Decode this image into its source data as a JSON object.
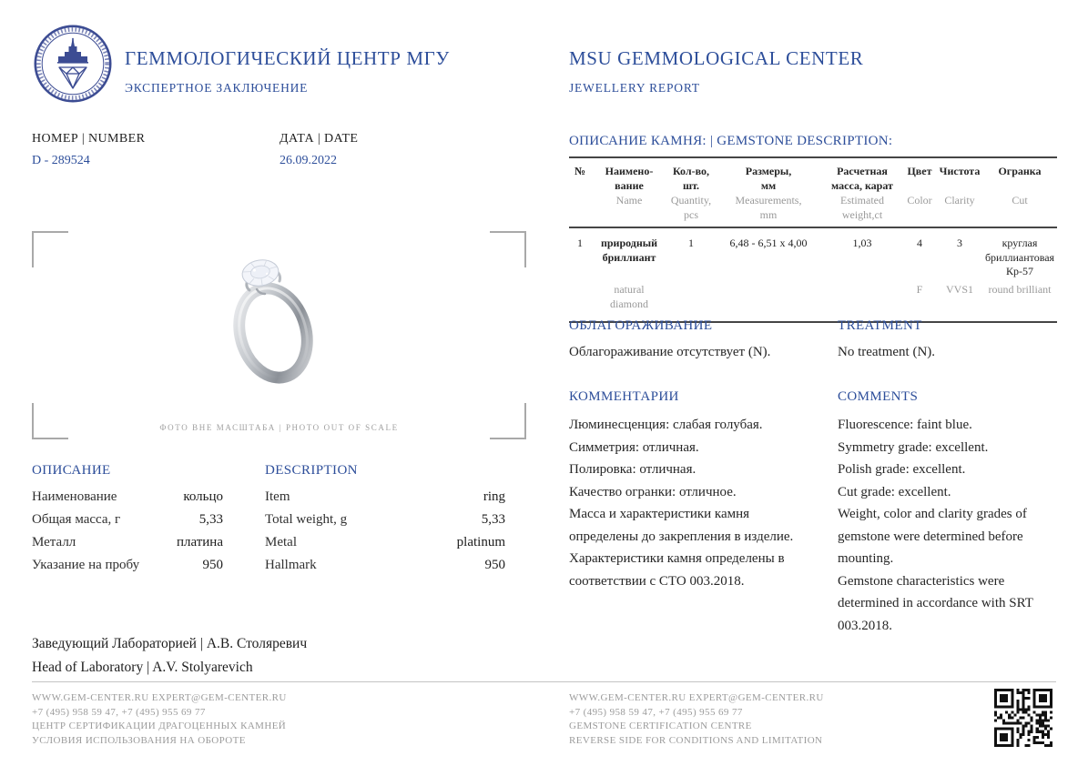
{
  "colors": {
    "accent": "#2d4e9a",
    "muted": "#9a9a9a"
  },
  "header": {
    "org_ru": "ГЕММОЛОГИЧЕСКИЙ ЦЕНТР МГУ",
    "report_ru": "ЭКСПЕРТНОЕ ЗАКЛЮЧЕНИЕ",
    "org_en": "MSU GEMMOLOGICAL CENTER",
    "report_en": "JEWELLERY REPORT",
    "logo": "msu-gem-center-seal"
  },
  "meta": {
    "number_label": "НОМЕР | NUMBER",
    "number_value": "D - 289524",
    "date_label": "ДАТА | DATE",
    "date_value": "26.09.2022"
  },
  "photo": {
    "caption": "ФОТО ВНЕ МАСШТАБА | PHOTO OUT OF SCALE",
    "subject": "platinum solitaire diamond ring"
  },
  "gemstone": {
    "heading": "ОПИСАНИЕ КАМНЯ: | GEMSTONE DESCRIPTION:",
    "header": [
      {
        "ru": "№",
        "en": ""
      },
      {
        "ru": "Наимено-\nвание",
        "en": "Name"
      },
      {
        "ru": "Кол-во,\nшт.",
        "en": "Quantity,\npcs"
      },
      {
        "ru": "Размеры,\nмм",
        "en": "Measurements,\nmm"
      },
      {
        "ru": "Расчетная\nмасса, карат",
        "en": "Estimated\nweight,ct"
      },
      {
        "ru": "Цвет",
        "en": "Color"
      },
      {
        "ru": "Чистота",
        "en": "Clarity"
      },
      {
        "ru": "Огранка",
        "en": "Cut"
      }
    ],
    "row_ru": [
      "1",
      "природный\nбриллиант",
      "1",
      "6,48 - 6,51 x 4,00",
      "1,03",
      "4",
      "3",
      "круглая\nбриллиантовая\nКр-57"
    ],
    "row_en": [
      "",
      "natural\ndiamond",
      "",
      "",
      "",
      "F",
      "VVS1",
      "round brilliant"
    ]
  },
  "treatment": {
    "ru": {
      "title": "ОБЛАГОРАЖИВАНИЕ",
      "text": "Облагораживание отсутствует (N)."
    },
    "en": {
      "title": "TREATMENT",
      "text": "No treatment (N)."
    }
  },
  "comments": {
    "ru": {
      "title": "КОММЕНТАРИИ",
      "text": "Люминесценция: слабая голубая.\nСимметрия: отличная.\nПолировка: отличная.\nКачество огранки: отличное.\nМасса и характеристики камня\nопределены до закрепления в изделие.\nХарактеристики камня определены в\nсоответствии с СТО 003.2018."
    },
    "en": {
      "title": "COMMENTS",
      "text": "Fluorescence: faint blue.\nSymmetry grade: excellent.\nPolish grade: excellent.\nCut grade: excellent.\nWeight, color and clarity grades of\ngemstone were determined before\nmounting.\nGemstone characteristics were\ndetermined in accordance with SRT\n003.2018."
    }
  },
  "description": {
    "ru": {
      "title": "ОПИСАНИЕ",
      "rows": [
        {
          "label": "Наименование",
          "value": "кольцо"
        },
        {
          "label": "Общая масса, г",
          "value": "5,33"
        },
        {
          "label": "Металл",
          "value": "платина"
        },
        {
          "label": "Указание на пробу",
          "value": "950"
        }
      ]
    },
    "en": {
      "title": "DESCRIPTION",
      "rows": [
        {
          "label": "Item",
          "value": "ring"
        },
        {
          "label": "Total weight, g",
          "value": "5,33"
        },
        {
          "label": "Metal",
          "value": "platinum"
        },
        {
          "label": "Hallmark",
          "value": "950"
        }
      ]
    }
  },
  "signature": {
    "ru": "Заведующий Лабораторией  | А.В. Столяревич",
    "en": "Head of Laboratory  | A.V. Stolyarevich"
  },
  "footer": {
    "left": "WWW.GEM-CENTER.RU EXPERT@GEM-CENTER.RU\n+7 (495) 958 59 47, +7 (495) 955 69 77\nЦЕНТР СЕРТИФИКАЦИИ ДРАГОЦЕННЫХ КАМНЕЙ\nУСЛОВИЯ ИСПОЛЬЗОВАНИЯ НА ОБОРОТЕ",
    "right": "WWW.GEM-CENTER.RU EXPERT@GEM-CENTER.RU\n+7 (495) 958 59 47, +7 (495) 955 69 77\nGEMSTONE CERTIFICATION CENTRE\nREVERSE SIDE FOR CONDITIONS AND LIMITATION"
  }
}
